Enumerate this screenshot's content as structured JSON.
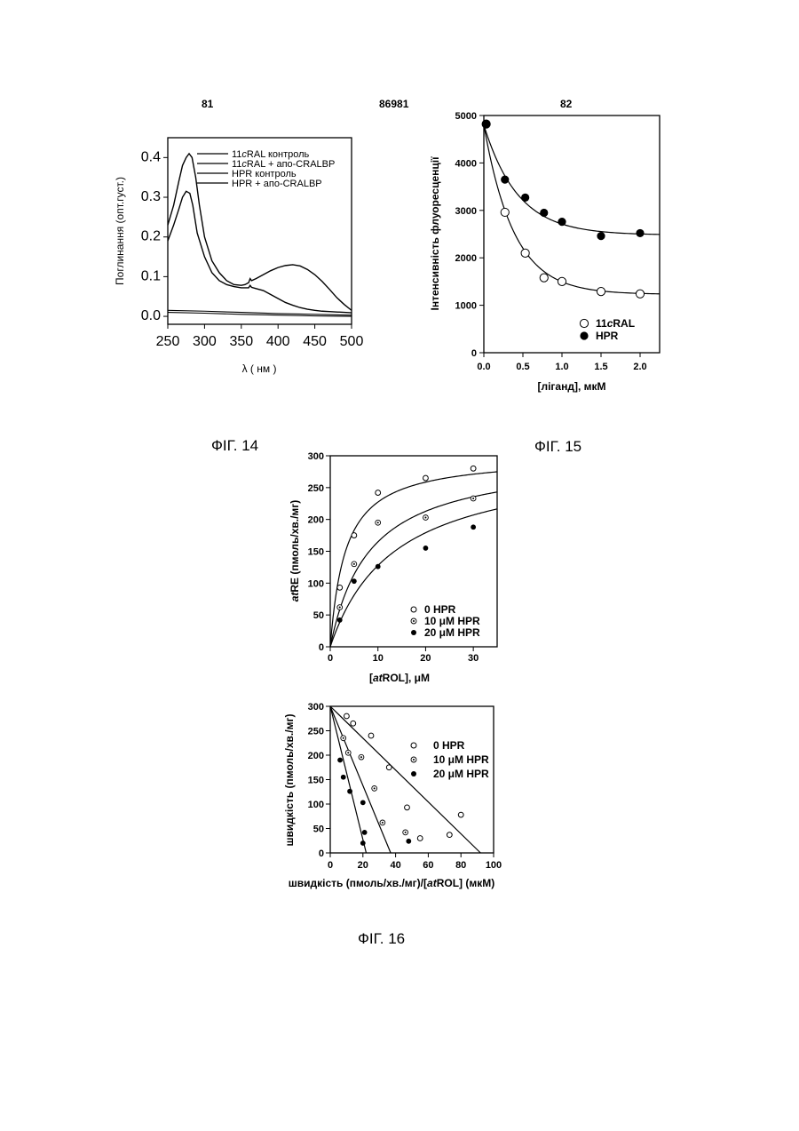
{
  "page": {
    "left_number": "81",
    "center_number": "86981",
    "right_number": "82",
    "fig14_caption": "ФІГ. 14",
    "fig15_caption": "ФІГ. 15",
    "fig16_caption": "ФІГ. 16"
  },
  "chart_data": [
    {
      "id": "fig14",
      "type": "line",
      "title": "",
      "xlabel": "λ ( нм )",
      "ylabel": "Поглинання (опт.густ.)",
      "xlim": [
        250,
        500
      ],
      "ylim": [
        -0.02,
        0.45
      ],
      "xticks": [
        "250",
        "300",
        "350",
        "400",
        "450",
        "500"
      ],
      "yticks": [
        "0.0",
        "0.1",
        "0.2",
        "0.3",
        "0.4"
      ],
      "legend": [
        {
          "pre": "11",
          "it": "c",
          "post": "RAL контроль"
        },
        {
          "pre": "11",
          "it": "c",
          "post": "RAL + апо-CRALBP"
        },
        {
          "pre": "",
          "it": "",
          "post": "HPR контроль"
        },
        {
          "pre": "",
          "it": "",
          "post": "HPR + апо-CRALBP"
        }
      ],
      "legend_position": "top",
      "series": [
        {
          "x": [
            250,
            258,
            265,
            270,
            275,
            279,
            283,
            288,
            293,
            300,
            310,
            320,
            330,
            340,
            350,
            355,
            360,
            362,
            364,
            370,
            380,
            390,
            400,
            410,
            420,
            430,
            440,
            450,
            460,
            470,
            480,
            490,
            500
          ],
          "y": [
            0.23,
            0.28,
            0.34,
            0.38,
            0.4,
            0.41,
            0.4,
            0.35,
            0.28,
            0.2,
            0.14,
            0.11,
            0.09,
            0.08,
            0.078,
            0.08,
            0.085,
            0.095,
            0.09,
            0.095,
            0.105,
            0.115,
            0.123,
            0.128,
            0.13,
            0.127,
            0.118,
            0.105,
            0.088,
            0.068,
            0.047,
            0.03,
            0.015
          ]
        },
        {
          "x": [
            250,
            258,
            265,
            270,
            275,
            280,
            284,
            290,
            300,
            310,
            320,
            330,
            340,
            350,
            360,
            362,
            364,
            370,
            380,
            390,
            400,
            410,
            420,
            430,
            440,
            450,
            460,
            470,
            480,
            490,
            500
          ],
          "y": [
            0.19,
            0.23,
            0.27,
            0.3,
            0.315,
            0.31,
            0.28,
            0.21,
            0.15,
            0.11,
            0.09,
            0.08,
            0.075,
            0.072,
            0.072,
            0.078,
            0.073,
            0.07,
            0.065,
            0.055,
            0.045,
            0.035,
            0.028,
            0.022,
            0.018,
            0.015,
            0.013,
            0.012,
            0.011,
            0.01,
            0.009
          ]
        },
        {
          "x": [
            250,
            300,
            350,
            400,
            450,
            500
          ],
          "y": [
            0.015,
            0.013,
            0.01,
            0.007,
            0.005,
            0.003
          ]
        },
        {
          "x": [
            250,
            300,
            350,
            400,
            450,
            500
          ],
          "y": [
            0.01,
            0.008,
            0.005,
            0.003,
            0.001,
            0.0
          ]
        }
      ]
    },
    {
      "id": "fig15",
      "type": "scatter",
      "title": "",
      "xlabel": "[ліганд], мкМ",
      "ylabel": "Інтенсивність флуоресценції",
      "xlim": [
        0,
        2.25
      ],
      "ylim": [
        0,
        5000
      ],
      "xticks": [
        "0.0",
        "0.5",
        "1.0",
        "1.5",
        "2.0"
      ],
      "yticks": [
        "0",
        "1000",
        "2000",
        "3000",
        "4000",
        "5000"
      ],
      "legend_position": "bottom-right",
      "series": [
        {
          "name": "11cRAL",
          "marker": "open",
          "x": [
            0.03,
            0.27,
            0.53,
            0.77,
            1.0,
            1.5,
            2.0
          ],
          "y": [
            4820,
            2960,
            2100,
            1580,
            1500,
            1290,
            1240
          ],
          "fit": {
            "start": 4800,
            "plateau": 1230,
            "k": 2.6
          }
        },
        {
          "name": "HPR",
          "marker": "filled",
          "x": [
            0.03,
            0.27,
            0.53,
            0.77,
            1.0,
            1.5,
            2.0
          ],
          "y": [
            4820,
            3650,
            3270,
            2950,
            2760,
            2460,
            2520
          ],
          "fit": {
            "start": 4800,
            "plateau": 2480,
            "k": 2.3
          }
        }
      ]
    },
    {
      "id": "fig16a",
      "type": "scatter",
      "title": "",
      "xlabel": "[atROL], μM",
      "ylabel": "atRE (пмоль/хв./мг)",
      "xlim": [
        0,
        35
      ],
      "ylim": [
        0,
        300
      ],
      "xticks": [
        "0",
        "10",
        "20",
        "30"
      ],
      "yticks": [
        "0",
        "50",
        "100",
        "150",
        "200",
        "250",
        "300"
      ],
      "legend_position": "bottom-right",
      "series": [
        {
          "name": "0 HPR",
          "marker": "open",
          "x": [
            2,
            5,
            10,
            20,
            30
          ],
          "y": [
            93,
            175,
            242,
            265,
            280
          ],
          "fit": {
            "vmax": 300,
            "km": 3.2
          }
        },
        {
          "name": "10 μM HPR",
          "marker": "dotted",
          "x": [
            2,
            5,
            10,
            20,
            30
          ],
          "y": [
            62,
            130,
            195,
            203,
            233
          ],
          "fit": {
            "vmax": 300,
            "km": 8.2
          }
        },
        {
          "name": "20 μM HPR",
          "marker": "filled",
          "x": [
            2,
            5,
            10,
            20,
            30
          ],
          "y": [
            42,
            103,
            126,
            155,
            188
          ],
          "fit": {
            "vmax": 300,
            "km": 13.5
          }
        }
      ]
    },
    {
      "id": "fig16b",
      "type": "scatter",
      "title": "",
      "xlabel": "швидкість (пмоль/хв./мг)/[atROL] (мкМ)",
      "ylabel": "швидкість (пмоль/хв./мг)",
      "xlim": [
        0,
        100
      ],
      "ylim": [
        0,
        300
      ],
      "xticks": [
        "0",
        "20",
        "40",
        "60",
        "80",
        "100"
      ],
      "yticks": [
        "0",
        "50",
        "100",
        "150",
        "200",
        "250",
        "300"
      ],
      "legend_position": "top-right",
      "series": [
        {
          "name": "0 HPR",
          "marker": "open",
          "x": [
            10,
            14,
            25,
            36,
            47,
            55,
            73,
            80
          ],
          "y": [
            280,
            265,
            240,
            175,
            93,
            30,
            37,
            78
          ],
          "fit": {
            "x0": 0,
            "y0": 300,
            "x1": 92,
            "y1": 0
          }
        },
        {
          "name": "10 μM HPR",
          "marker": "dotted",
          "x": [
            8,
            11,
            19,
            27,
            32,
            46
          ],
          "y": [
            235,
            205,
            196,
            132,
            62,
            42
          ],
          "fit": {
            "x0": 0,
            "y0": 300,
            "x1": 37,
            "y1": 0
          }
        },
        {
          "name": "20 μM HPR",
          "marker": "filled",
          "x": [
            6,
            8,
            12,
            20,
            21,
            20,
            48
          ],
          "y": [
            190,
            155,
            126,
            103,
            42,
            20,
            24
          ],
          "fit": {
            "x0": 0,
            "y0": 300,
            "x1": 22,
            "y1": 0
          }
        }
      ]
    }
  ]
}
